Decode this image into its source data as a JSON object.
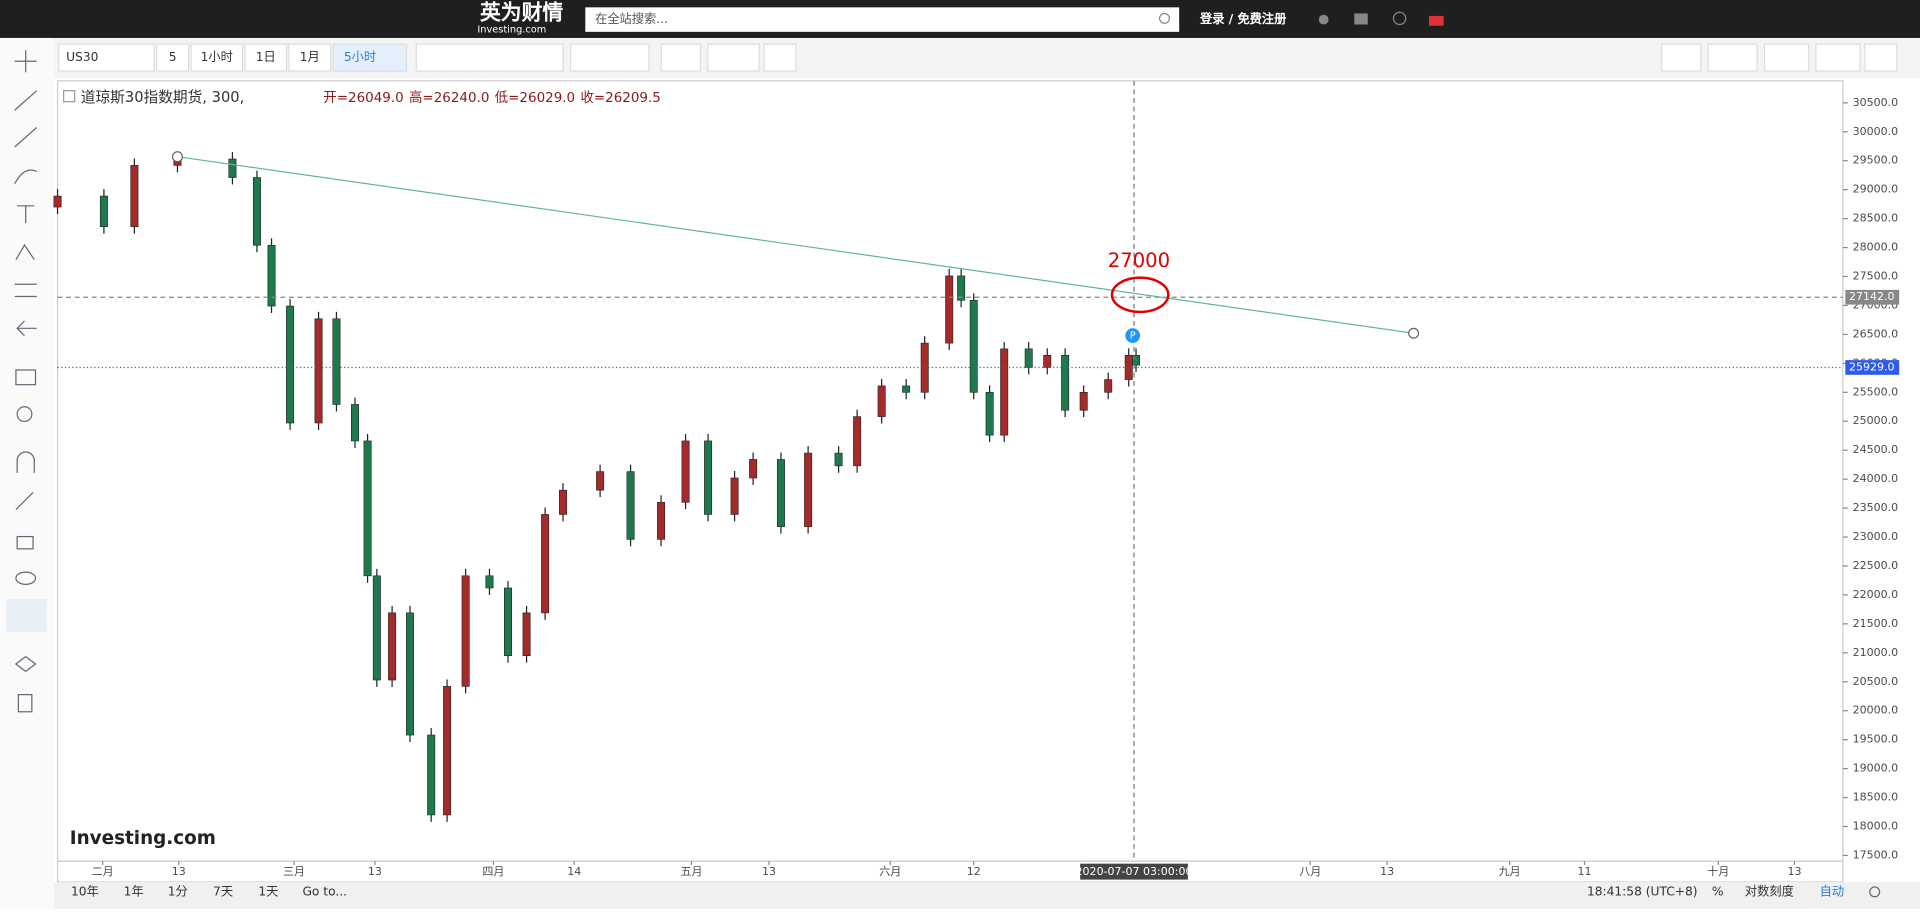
{
  "header": {
    "brand": "英为财情",
    "brand_sub": "Investing.com",
    "search_placeholder": "在全站搜索...",
    "login": "登录 / 免费注册"
  },
  "toolbar": {
    "symbol": "US30",
    "interval_input": "5",
    "intervals": [
      "1小时",
      "1日",
      "1月",
      "5小时"
    ]
  },
  "footer": {
    "ranges": [
      "10年",
      "1年",
      "1分",
      "7天",
      "1天",
      "Go to..."
    ],
    "time": "18:41:58 (UTC+8)",
    "percent": "%",
    "log": "对数刻度",
    "auto": "自动"
  },
  "chart_data": {
    "type": "candlestick",
    "title": "道琼斯30指数期货, 300,",
    "ohlc_labels": [
      "开=26049.0",
      "高=26240.0",
      "低=26029.0",
      "收=26209.5"
    ],
    "watermark": "Investing.com",
    "up_color": "#a52a2a",
    "down_color": "#1e7a4c",
    "x": [
      25,
      32,
      36.6,
      43.1,
      51.4,
      55.1,
      57.3,
      60.1,
      64.4,
      67.1,
      69.9,
      71.8,
      73.2,
      75.5,
      78.2,
      81.4,
      83.8,
      86.6,
      90.2,
      93,
      95.8,
      98.6,
      101.3,
      106.9,
      111.5,
      116.1,
      119.8,
      123.2,
      127.2,
      130,
      134.2,
      138.3,
      142.9,
      145.7,
      149.4,
      153.1,
      155.9,
      159.6,
      161.4,
      163.3,
      165.7,
      167.9,
      171.6,
      174.4,
      177.1,
      179.9,
      183.6,
      186.7,
      187.8
    ],
    "open": [
      28700,
      28890,
      28360,
      29420,
      29530,
      29210,
      28040,
      26990,
      24970,
      26770,
      25290,
      24660,
      22330,
      20530,
      21690,
      19580,
      18200,
      20420,
      22330,
      22120,
      20950,
      21690,
      23390,
      23810,
      24130,
      22960,
      23600,
      24660,
      23390,
      24020,
      24340,
      23180,
      24450,
      24230,
      25080,
      25610,
      25500,
      26350,
      27510,
      27090,
      25500,
      24760,
      26250,
      25930,
      26140,
      25190,
      25500,
      25720,
      26140
    ],
    "high": [
      29010,
      29010,
      29540,
      29650,
      29650,
      29330,
      28160,
      27110,
      26890,
      26890,
      25410,
      24780,
      22450,
      21810,
      21810,
      19700,
      20540,
      22450,
      22450,
      22240,
      21810,
      23510,
      23930,
      24250,
      24250,
      23720,
      24780,
      24780,
      24140,
      24460,
      24460,
      24570,
      24570,
      25200,
      25730,
      25730,
      26470,
      27630,
      27630,
      27210,
      25620,
      26370,
      26370,
      26260,
      26260,
      25620,
      25840,
      26260,
      26260
    ],
    "low": [
      28580,
      28240,
      28240,
      29300,
      29090,
      27920,
      26870,
      24850,
      24850,
      25170,
      24540,
      22210,
      20410,
      20410,
      19460,
      18080,
      18080,
      20300,
      22000,
      20830,
      20830,
      21570,
      23270,
      23690,
      22840,
      22840,
      23480,
      23270,
      23270,
      23900,
      23060,
      23060,
      24110,
      24110,
      24960,
      25380,
      25380,
      26230,
      26970,
      25380,
      24640,
      24640,
      25810,
      25810,
      25070,
      25070,
      25380,
      25600,
      25850
    ],
    "close": [
      28890,
      28360,
      29420,
      29530,
      29210,
      28040,
      26990,
      24970,
      26770,
      25290,
      24660,
      22330,
      20530,
      21690,
      19580,
      18200,
      20420,
      22330,
      22120,
      20950,
      21690,
      23390,
      23810,
      24130,
      22960,
      23600,
      24660,
      23390,
      24020,
      24340,
      23180,
      24450,
      24230,
      25080,
      25610,
      25500,
      26350,
      27510,
      27090,
      25500,
      24760,
      26250,
      25930,
      26140,
      25190,
      25500,
      25720,
      26140,
      25970
    ],
    "xlim": [
      25,
      294.5
    ],
    "ylim": [
      17400,
      30880
    ],
    "xticks": [
      {
        "value": 31.8,
        "label": "二月"
      },
      {
        "value": 43.3,
        "label": "13"
      },
      {
        "value": 60.7,
        "label": "三月"
      },
      {
        "value": 72.9,
        "label": "13"
      },
      {
        "value": 90.8,
        "label": "四月"
      },
      {
        "value": 103,
        "label": "14"
      },
      {
        "value": 120.7,
        "label": "五月"
      },
      {
        "value": 132.4,
        "label": "13"
      },
      {
        "value": 150.7,
        "label": "六月"
      },
      {
        "value": 163.3,
        "label": "12"
      },
      {
        "value": 214.1,
        "label": "八月"
      },
      {
        "value": 225.7,
        "label": "13"
      },
      {
        "value": 244.2,
        "label": "九月"
      },
      {
        "value": 255.5,
        "label": "11"
      },
      {
        "value": 275.7,
        "label": "十月"
      },
      {
        "value": 287.2,
        "label": "13"
      }
    ],
    "yticks": [
      {
        "value": 17500,
        "label": "17500.0"
      },
      {
        "value": 18000,
        "label": "18000.0"
      },
      {
        "value": 18500,
        "label": "18500.0"
      },
      {
        "value": 19000,
        "label": "19000.0"
      },
      {
        "value": 19500,
        "label": "19500.0"
      },
      {
        "value": 20000,
        "label": "20000.0"
      },
      {
        "value": 20500,
        "label": "20500.0"
      },
      {
        "value": 21000,
        "label": "21000.0"
      },
      {
        "value": 21500,
        "label": "21500.0"
      },
      {
        "value": 22000,
        "label": "22000.0"
      },
      {
        "value": 22500,
        "label": "22500.0"
      },
      {
        "value": 23000,
        "label": "23000.0"
      },
      {
        "value": 23500,
        "label": "23500.0"
      },
      {
        "value": 24000,
        "label": "24000.0"
      },
      {
        "value": 24500,
        "label": "24500.0"
      },
      {
        "value": 25000,
        "label": "25000.0"
      },
      {
        "value": 25500,
        "label": "25500.0"
      },
      {
        "value": 26000,
        "label": "26000.0"
      },
      {
        "value": 26500,
        "label": "26500.0"
      },
      {
        "value": 27000,
        "label": "27000.0"
      },
      {
        "value": 27500,
        "label": "27500.0"
      },
      {
        "value": 28000,
        "label": "28000.0"
      },
      {
        "value": 28500,
        "label": "28500.0"
      },
      {
        "value": 29000,
        "label": "29000.0"
      },
      {
        "value": 29500,
        "label": "29500.0"
      },
      {
        "value": 30000,
        "label": "30000.0"
      },
      {
        "value": 30500,
        "label": "30500.0"
      }
    ],
    "trend_line": {
      "x": [
        43.1,
        229.7
      ],
      "y": [
        29570,
        26520
      ],
      "color": "#5fb89a"
    },
    "price_lines": [
      {
        "value": 27142,
        "label": "27142.0",
        "color": "#888888",
        "style": "dashed"
      },
      {
        "value": 25929,
        "label": "25929.0",
        "color": "#2f5bea",
        "style": "dotted"
      }
    ],
    "crosshair": {
      "x": 187.5,
      "label": "2020-07-07 03:00:00"
    },
    "marker": {
      "label": "P",
      "x": 187.3,
      "y": 26480
    },
    "annotation": {
      "text": "27000",
      "color": "#e00000"
    }
  }
}
